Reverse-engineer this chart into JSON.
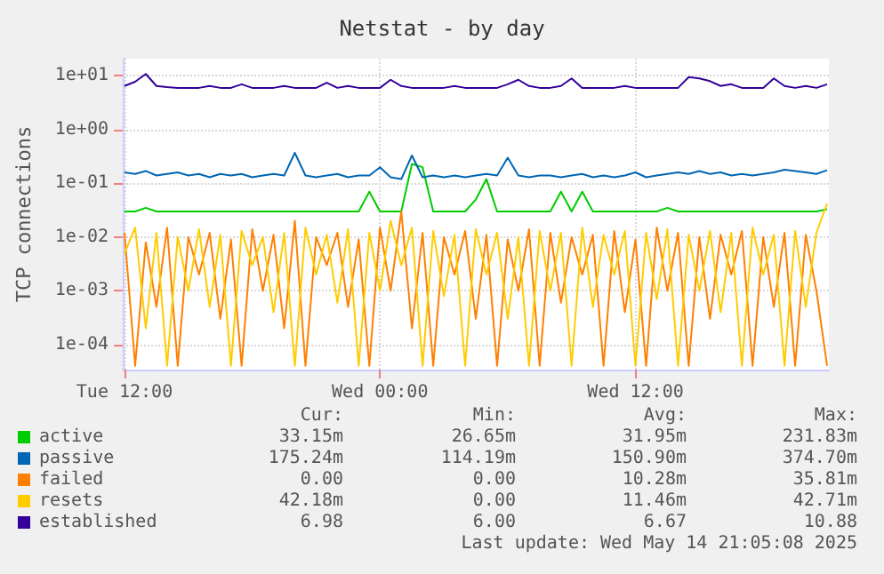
{
  "chart_data": {
    "type": "line",
    "title": "Netstat - by day",
    "ylabel": "TCP connections",
    "log": "y",
    "grid": true,
    "legend": "bottom left",
    "marker": "none",
    "line_style": "solid",
    "ylim": [
      3.4e-05,
      21
    ],
    "yticks": [
      {
        "value": 0.0001,
        "label": "1e-04"
      },
      {
        "value": 0.001,
        "label": "1e-03"
      },
      {
        "value": 0.01,
        "label": "1e-02"
      },
      {
        "value": 0.1,
        "label": "1e-01"
      },
      {
        "value": 1,
        "label": "1e+00"
      },
      {
        "value": 10,
        "label": "1e+01"
      }
    ],
    "xlim": [
      "2025-05-13T11:55",
      "2025-05-14T21:05"
    ],
    "xticks": [
      {
        "value": "2025-05-13T12:00",
        "label": "Tue 12:00"
      },
      {
        "value": "2025-05-14T00:00",
        "label": "Wed 00:00"
      },
      {
        "value": "2025-05-14T12:00",
        "label": "Wed 12:00"
      }
    ],
    "x": [
      "2025-05-13T12:00",
      "2025-05-13T12:30",
      "2025-05-13T13:00",
      "2025-05-13T13:30",
      "2025-05-13T14:00",
      "2025-05-13T14:30",
      "2025-05-13T15:00",
      "2025-05-13T15:30",
      "2025-05-13T16:00",
      "2025-05-13T16:30",
      "2025-05-13T17:00",
      "2025-05-13T17:30",
      "2025-05-13T18:00",
      "2025-05-13T18:30",
      "2025-05-13T19:00",
      "2025-05-13T19:30",
      "2025-05-13T20:00",
      "2025-05-13T20:30",
      "2025-05-13T21:00",
      "2025-05-13T21:30",
      "2025-05-13T22:00",
      "2025-05-13T22:30",
      "2025-05-13T23:00",
      "2025-05-13T23:30",
      "2025-05-14T00:00",
      "2025-05-14T00:30",
      "2025-05-14T01:00",
      "2025-05-14T01:30",
      "2025-05-14T02:00",
      "2025-05-14T02:30",
      "2025-05-14T03:00",
      "2025-05-14T03:30",
      "2025-05-14T04:00",
      "2025-05-14T04:30",
      "2025-05-14T05:00",
      "2025-05-14T05:30",
      "2025-05-14T06:00",
      "2025-05-14T06:30",
      "2025-05-14T07:00",
      "2025-05-14T07:30",
      "2025-05-14T08:00",
      "2025-05-14T08:30",
      "2025-05-14T09:00",
      "2025-05-14T09:30",
      "2025-05-14T10:00",
      "2025-05-14T10:30",
      "2025-05-14T11:00",
      "2025-05-14T11:30",
      "2025-05-14T12:00",
      "2025-05-14T12:30",
      "2025-05-14T13:00",
      "2025-05-14T13:30",
      "2025-05-14T14:00",
      "2025-05-14T14:30",
      "2025-05-14T15:00",
      "2025-05-14T15:30",
      "2025-05-14T16:00",
      "2025-05-14T16:30",
      "2025-05-14T17:00",
      "2025-05-14T17:30",
      "2025-05-14T18:00",
      "2025-05-14T18:30",
      "2025-05-14T19:00",
      "2025-05-14T19:30",
      "2025-05-14T20:00",
      "2025-05-14T20:30",
      "2025-05-14T21:00"
    ],
    "series": [
      {
        "name": "active",
        "color": "#00cc00",
        "values": [
          0.03,
          0.03,
          0.035,
          0.03,
          0.03,
          0.03,
          0.03,
          0.03,
          0.03,
          0.03,
          0.03,
          0.03,
          0.03,
          0.03,
          0.03,
          0.03,
          0.03,
          0.03,
          0.03,
          0.03,
          0.03,
          0.03,
          0.03,
          0.07,
          0.03,
          0.03,
          0.03,
          0.23,
          0.2,
          0.03,
          0.03,
          0.03,
          0.03,
          0.05,
          0.12,
          0.03,
          0.03,
          0.03,
          0.03,
          0.03,
          0.03,
          0.07,
          0.03,
          0.07,
          0.03,
          0.03,
          0.03,
          0.03,
          0.03,
          0.03,
          0.03,
          0.035,
          0.03,
          0.03,
          0.03,
          0.03,
          0.03,
          0.03,
          0.03,
          0.03,
          0.03,
          0.03,
          0.03,
          0.03,
          0.03,
          0.03,
          0.033
        ]
      },
      {
        "name": "passive",
        "color": "#0066b3",
        "values": [
          0.16,
          0.15,
          0.17,
          0.14,
          0.15,
          0.16,
          0.14,
          0.15,
          0.13,
          0.15,
          0.14,
          0.15,
          0.13,
          0.14,
          0.15,
          0.14,
          0.37,
          0.14,
          0.13,
          0.14,
          0.15,
          0.13,
          0.14,
          0.14,
          0.2,
          0.13,
          0.12,
          0.33,
          0.13,
          0.14,
          0.13,
          0.14,
          0.13,
          0.14,
          0.15,
          0.14,
          0.3,
          0.14,
          0.13,
          0.14,
          0.14,
          0.13,
          0.14,
          0.15,
          0.13,
          0.14,
          0.13,
          0.14,
          0.16,
          0.13,
          0.14,
          0.15,
          0.16,
          0.15,
          0.17,
          0.15,
          0.16,
          0.14,
          0.15,
          0.14,
          0.15,
          0.16,
          0.18,
          0.17,
          0.16,
          0.15,
          0.175
        ]
      },
      {
        "name": "failed",
        "color": "#ff8000",
        "values": [
          0.012,
          4e-05,
          0.008,
          0.0005,
          0.015,
          4e-05,
          0.01,
          0.002,
          0.012,
          0.0003,
          0.009,
          4e-05,
          0.014,
          0.001,
          0.011,
          0.0002,
          0.02,
          4e-05,
          0.01,
          0.003,
          0.012,
          0.0005,
          0.009,
          4e-05,
          0.015,
          0.001,
          0.03,
          0.0002,
          0.012,
          4e-05,
          0.01,
          0.002,
          0.013,
          0.0003,
          0.011,
          4e-05,
          0.009,
          0.001,
          0.014,
          4e-05,
          0.012,
          0.0006,
          0.01,
          0.002,
          0.011,
          4e-05,
          0.013,
          0.0004,
          0.009,
          4e-05,
          0.015,
          0.001,
          0.012,
          4e-05,
          0.01,
          0.0003,
          0.011,
          0.002,
          0.013,
          4e-05,
          0.01,
          0.0005,
          0.012,
          4e-05,
          0.011,
          0.001,
          4e-05
        ]
      },
      {
        "name": "resets",
        "color": "#ffcc00",
        "values": [
          0.005,
          0.015,
          0.0002,
          0.012,
          4e-05,
          0.01,
          0.001,
          0.014,
          0.0005,
          0.011,
          4e-05,
          0.013,
          0.003,
          0.01,
          0.0004,
          0.012,
          4e-05,
          0.015,
          0.002,
          0.011,
          0.0006,
          0.014,
          4e-05,
          0.012,
          0.001,
          0.02,
          0.003,
          0.015,
          4e-05,
          0.013,
          0.0008,
          0.011,
          4e-05,
          0.014,
          0.002,
          0.012,
          0.0003,
          0.01,
          4e-05,
          0.013,
          0.001,
          0.012,
          4e-05,
          0.015,
          0.0005,
          0.011,
          0.002,
          0.013,
          4e-05,
          0.012,
          0.0007,
          0.014,
          4e-05,
          0.011,
          0.001,
          0.013,
          0.0004,
          0.012,
          4e-05,
          0.015,
          0.002,
          0.011,
          4e-05,
          0.013,
          0.0005,
          0.012,
          0.04218
        ]
      },
      {
        "name": "established",
        "color": "#330099",
        "values": [
          6.5,
          7.8,
          10.88,
          6.5,
          6.2,
          6.0,
          6.0,
          6.0,
          6.5,
          6.0,
          6.0,
          7.0,
          6.0,
          6.0,
          6.0,
          6.5,
          6.0,
          6.0,
          6.0,
          7.5,
          6.0,
          6.5,
          6.0,
          6.0,
          6.0,
          8.5,
          6.5,
          6.0,
          6.0,
          6.0,
          6.0,
          6.5,
          6.0,
          6.0,
          6.0,
          6.0,
          7.0,
          8.5,
          6.5,
          6.0,
          6.0,
          6.5,
          9.0,
          6.0,
          6.0,
          6.0,
          6.0,
          6.5,
          6.0,
          6.0,
          6.0,
          6.0,
          6.0,
          9.5,
          9.0,
          8.0,
          6.5,
          7.0,
          6.0,
          6.0,
          6.0,
          9.0,
          6.5,
          6.0,
          6.5,
          6.0,
          6.98
        ]
      }
    ],
    "annotations": [
      "Cur:",
      "Min:",
      "Avg:",
      "Max:",
      "33.15m",
      "26.65m",
      "31.95m",
      "231.83m",
      "175.24m",
      "114.19m",
      "150.90m",
      "374.70m",
      "0.00",
      "0.00",
      "10.28m",
      "35.81m",
      "42.18m",
      "0.00",
      "11.46m",
      "42.71m",
      "6.98",
      "6.00",
      "6.67",
      "10.88",
      "Last update: Wed May 14 21:05:08 2025"
    ]
  }
}
